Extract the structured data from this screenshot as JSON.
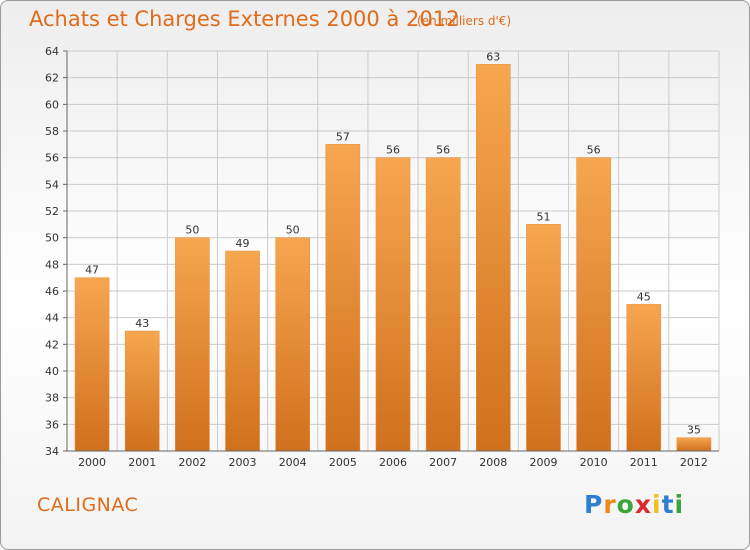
{
  "header": {
    "title": "Achats et Charges Externes 2000 à 2012",
    "subtitle": "(en milliers d'€)"
  },
  "footer": {
    "commune": "CALIGNAC",
    "logo_letters": [
      "P",
      "r",
      "o",
      "x",
      "i",
      "t",
      "i"
    ]
  },
  "colors": {
    "bar_top": "#f7a650",
    "bar_bottom": "#d0701c",
    "title": "#e06b1b",
    "grid": "#cccccc",
    "logo": [
      "#2f7fd0",
      "#f08a1c",
      "#3aa53a",
      "#d92b2b",
      "#f0c020",
      "#2f7fd0",
      "#3aa53a"
    ]
  },
  "chart_data": {
    "type": "bar",
    "title": "Achats et Charges Externes 2000 à 2012",
    "subtitle": "(en milliers d'€)",
    "xlabel": "",
    "ylabel": "",
    "categories": [
      "2000",
      "2001",
      "2002",
      "2003",
      "2004",
      "2005",
      "2006",
      "2007",
      "2008",
      "2009",
      "2010",
      "2011",
      "2012"
    ],
    "values": [
      47,
      43,
      50,
      49,
      50,
      57,
      56,
      56,
      63,
      51,
      56,
      45,
      35
    ],
    "ylim": [
      34,
      64
    ],
    "yticks": [
      34,
      36,
      38,
      40,
      42,
      44,
      46,
      48,
      50,
      52,
      54,
      56,
      58,
      60,
      62,
      64
    ],
    "grid": true,
    "legend": "none"
  }
}
